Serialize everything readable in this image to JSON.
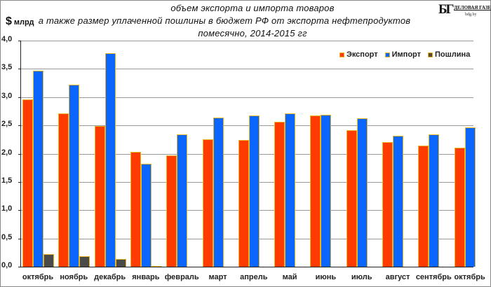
{
  "header": {
    "title_line1": "объем экспорта и импорта товаров",
    "title_line2": "а также размер уплаченной пошлины в бюджет РФ от экспорта нефтепродуктов",
    "title_line3": "помесячно, 2014-2015 гг",
    "unit_symbol": "$",
    "unit_label": "млрд"
  },
  "logo": {
    "mark": "БГ",
    "name": "ДЕЛОВАЯ ГАЗЕТА",
    "site": "bdg.by"
  },
  "legend": {
    "export": "Экспорт",
    "import": "Импорт",
    "duty": "Пошлина"
  },
  "colors": {
    "export": "#ff3b00",
    "import": "#0a66ff",
    "duty": "#4a4a4a",
    "bar_outline": "#e6b41e"
  },
  "y_ticks": [
    "4,0",
    "3,5",
    "3,0",
    "2,5",
    "2,0",
    "1,5",
    "1,0",
    "0,5",
    "0,0"
  ],
  "chart_data": {
    "type": "bar",
    "title": "объем экспорта и импорта товаров а также размер уплаченной пошлины в бюджет РФ от экспорта нефтепродуктов помесячно, 2014-2015 гг",
    "xlabel": "",
    "ylabel": "$ млрд",
    "ylim": [
      0,
      4.0
    ],
    "yticks": [
      0.0,
      0.5,
      1.0,
      1.5,
      2.0,
      2.5,
      3.0,
      3.5,
      4.0
    ],
    "grid": true,
    "legend_position": "top-right",
    "categories": [
      "октябрь",
      "ноябрь",
      "декабрь",
      "январь",
      "февраль",
      "март",
      "апрель",
      "май",
      "июнь",
      "июль",
      "август",
      "сентябрь",
      "октябрь"
    ],
    "series": [
      {
        "name": "Экспорт",
        "values": [
          2.96,
          2.71,
          2.49,
          2.03,
          1.97,
          2.26,
          2.24,
          2.56,
          2.68,
          2.42,
          2.21,
          2.14,
          2.1
        ]
      },
      {
        "name": "Импорт",
        "values": [
          3.47,
          3.22,
          3.78,
          1.82,
          2.34,
          2.64,
          2.67,
          2.71,
          2.69,
          2.62,
          2.31,
          2.34,
          2.47
        ]
      },
      {
        "name": "Пошлина",
        "values": [
          0.22,
          0.18,
          0.14,
          0.01,
          0,
          0,
          0,
          0,
          0,
          0,
          0,
          0,
          0
        ]
      }
    ]
  }
}
